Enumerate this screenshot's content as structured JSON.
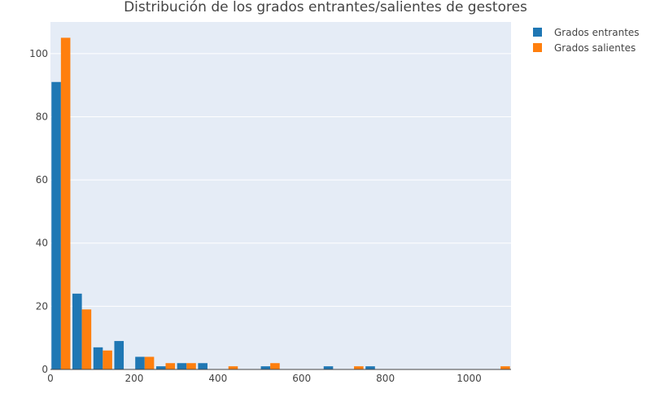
{
  "chart_data": {
    "type": "bar",
    "title": "Distribución de los grados entrantes/salientes de gestores",
    "xlabel": "",
    "ylabel": "",
    "xlim": [
      0,
      1100
    ],
    "ylim": [
      0,
      110
    ],
    "x_ticks": [
      0,
      200,
      400,
      600,
      800,
      1000
    ],
    "y_ticks": [
      0,
      20,
      40,
      60,
      80,
      100
    ],
    "grid": true,
    "legend_position": "top-right",
    "bin_width": 50,
    "series": [
      {
        "name": "Grados entrantes",
        "color": "#1f77b4",
        "bins": [
          {
            "start": 0,
            "value": 91
          },
          {
            "start": 50,
            "value": 24
          },
          {
            "start": 100,
            "value": 7
          },
          {
            "start": 150,
            "value": 9
          },
          {
            "start": 200,
            "value": 4
          },
          {
            "start": 250,
            "value": 1
          },
          {
            "start": 300,
            "value": 2
          },
          {
            "start": 350,
            "value": 2
          },
          {
            "start": 500,
            "value": 1
          },
          {
            "start": 650,
            "value": 1
          },
          {
            "start": 750,
            "value": 1
          }
        ]
      },
      {
        "name": "Grados salientes",
        "color": "#ff7f0e",
        "bins": [
          {
            "start": 0,
            "value": 105
          },
          {
            "start": 50,
            "value": 19
          },
          {
            "start": 100,
            "value": 6
          },
          {
            "start": 200,
            "value": 4
          },
          {
            "start": 250,
            "value": 2
          },
          {
            "start": 300,
            "value": 2
          },
          {
            "start": 400,
            "value": 1
          },
          {
            "start": 500,
            "value": 2
          },
          {
            "start": 700,
            "value": 1
          },
          {
            "start": 1050,
            "value": 1
          }
        ]
      }
    ]
  }
}
